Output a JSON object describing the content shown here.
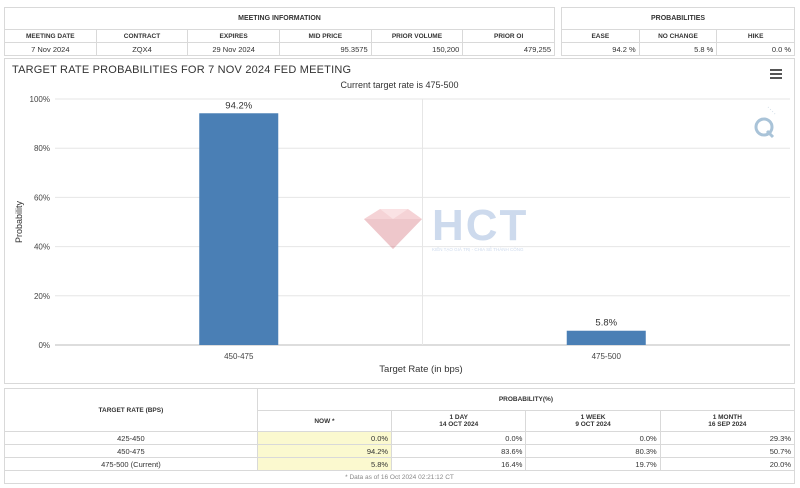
{
  "meeting_info": {
    "title": "MEETING INFORMATION",
    "headers": [
      "MEETING DATE",
      "CONTRACT",
      "EXPIRES",
      "MID PRICE",
      "PRIOR VOLUME",
      "PRIOR OI"
    ],
    "row": [
      "7 Nov 2024",
      "ZQX4",
      "29 Nov 2024",
      "95.3575",
      "150,200",
      "479,255"
    ]
  },
  "probabilities": {
    "title": "PROBABILITIES",
    "headers": [
      "EASE",
      "NO CHANGE",
      "HIKE"
    ],
    "row": [
      "94.2 %",
      "5.8 %",
      "0.0 %"
    ]
  },
  "chart": {
    "menu_icon": "hamburger-menu-icon"
  },
  "chart_data": {
    "type": "bar",
    "title": "TARGET RATE PROBABILITIES FOR 7 NOV 2024 FED MEETING",
    "subtitle": "Current target rate is 475-500",
    "xlabel": "Target Rate (in bps)",
    "ylabel": "Probability",
    "categories": [
      "450-475",
      "475-500"
    ],
    "values": [
      94.2,
      5.8
    ],
    "data_labels": [
      "94.2%",
      "5.8%"
    ],
    "ylim": [
      0,
      100
    ],
    "yticks": [
      "0%",
      "20%",
      "40%",
      "60%",
      "80%",
      "100%"
    ],
    "bar_color": "#4a7fb5",
    "grid": true,
    "legend": "none"
  },
  "watermark": {
    "text": "HCT",
    "tagline": "KIẾN TẠO GIÁ TRỊ - CHIA SẺ THÀNH CÔNG"
  },
  "target_table": {
    "col0_header": "TARGET RATE (BPS)",
    "group_header": "PROBABILITY(%)",
    "headers": [
      {
        "line1": "NOW *",
        "line2": ""
      },
      {
        "line1": "1 DAY",
        "line2": "14 OCT 2024"
      },
      {
        "line1": "1 WEEK",
        "line2": "9 OCT 2024"
      },
      {
        "line1": "1 MONTH",
        "line2": "16 SEP 2024"
      }
    ],
    "rows": [
      {
        "rate": "425-450",
        "vals": [
          "0.0%",
          "0.0%",
          "0.0%",
          "29.3%"
        ]
      },
      {
        "rate": "450-475",
        "vals": [
          "94.2%",
          "83.6%",
          "80.3%",
          "50.7%"
        ]
      },
      {
        "rate": "475-500 (Current)",
        "vals": [
          "5.8%",
          "16.4%",
          "19.7%",
          "20.0%"
        ]
      }
    ],
    "footnote": "* Data as of 16 Oct 2024 02:21:12 CT"
  }
}
